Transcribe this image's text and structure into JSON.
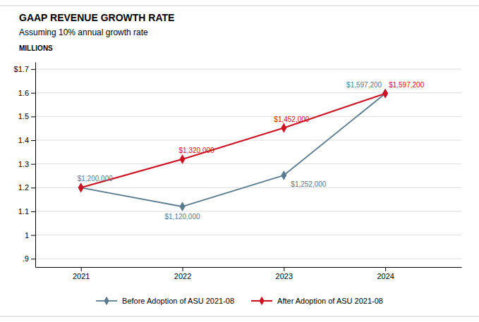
{
  "chart_data": {
    "type": "line",
    "title": "GAAP REVENUE GROWTH RATE",
    "subtitle": "Assuming 10% annual growth rate",
    "ylabel": "MILLIONS",
    "x": [
      2021,
      2022,
      2023,
      2024
    ],
    "xlim": [
      2020.55,
      2024.75
    ],
    "xticks": [
      2021,
      2022,
      2023,
      2024
    ],
    "ylim": [
      0.865,
      1.73
    ],
    "yticks": [
      {
        "value": 0.9,
        "label": ".9"
      },
      1,
      1.1,
      1.2,
      1.3,
      1.4,
      1.5,
      1.6,
      {
        "value": 1.7,
        "label": "$1.7"
      }
    ],
    "grid": true,
    "legend": "bottom",
    "marker": "diamond",
    "data_labels": true,
    "series": [
      {
        "name": "Before Adoption of ASU 2021-08",
        "color": "#5a7a8e",
        "values": [
          1.2,
          1.12,
          1.252,
          1.5972
        ],
        "value_labels": [
          "$1,200,000",
          "$1,120,000",
          "$1,252,000",
          "$1,597,200"
        ]
      },
      {
        "name": "After Adoption of ASU 2021-08",
        "color": "#cc1122",
        "values": [
          1.2,
          1.32,
          1.452,
          1.5972
        ],
        "value_labels": [
          null,
          "$1,320,000",
          "$1,452,000",
          "$1,597,200"
        ]
      }
    ]
  }
}
